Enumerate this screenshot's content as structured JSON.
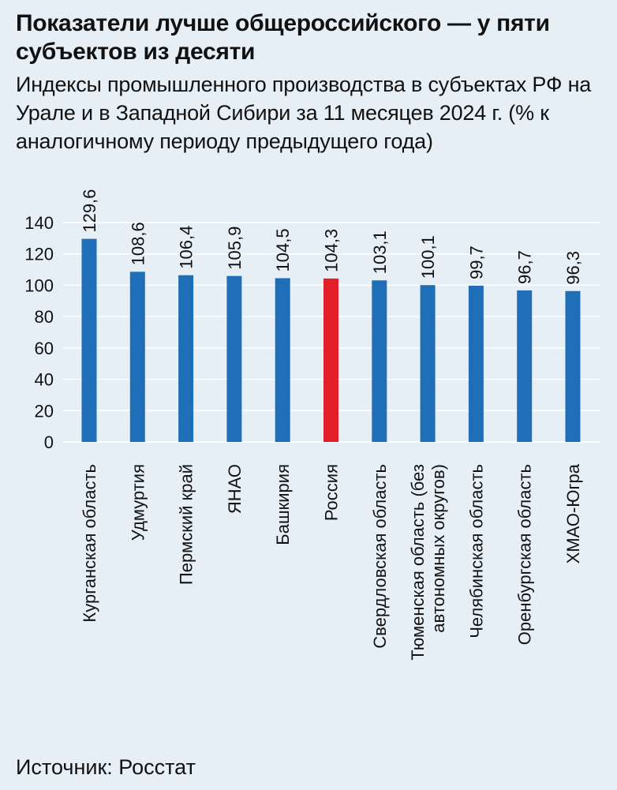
{
  "title": "Показатели лучше общероссийского — у пяти субъектов из десяти",
  "subtitle": "Индексы промышленного производства в субъектах РФ на Урале и в Западной Сибири за 11 месяцев 2024 г. (% к аналогичному периоду предыдущего года)",
  "source": "Источник: Росстат",
  "colors": {
    "bar": "#1e6fb8",
    "highlight": "#e3202a",
    "grid": "#ffffff",
    "background": "#e6eff6"
  },
  "chart_data": {
    "type": "bar",
    "categories": [
      "Курганская область",
      "Удмуртия",
      "Пермский край",
      "ЯНАО",
      "Башкирия",
      "Россия",
      "Свердловская область",
      "Тюменская область (без автономных округов)",
      "Челябинская область",
      "Оренбургская область",
      "ХМАО-Югра"
    ],
    "category_lines": [
      [
        "Курганская область"
      ],
      [
        "Удмуртия"
      ],
      [
        "Пермский край"
      ],
      [
        "ЯНАО"
      ],
      [
        "Башкирия"
      ],
      [
        "Россия"
      ],
      [
        "Свердловская область"
      ],
      [
        "Тюменская область (без",
        "автономных округов)"
      ],
      [
        "Челябинская область"
      ],
      [
        "Оренбургская область"
      ],
      [
        "ХМАО-Югра"
      ]
    ],
    "values": [
      129.6,
      108.6,
      106.4,
      105.9,
      104.5,
      104.3,
      103.1,
      100.1,
      99.7,
      96.7,
      96.3
    ],
    "value_labels": [
      "129,6",
      "108,6",
      "106,4",
      "105,9",
      "104,5",
      "104,3",
      "103,1",
      "100,1",
      "99,7",
      "96,7",
      "96,3"
    ],
    "highlight_category": "Россия",
    "yticks": [
      0,
      20,
      40,
      60,
      80,
      100,
      120,
      140
    ],
    "ylim": [
      0,
      140
    ],
    "grid": true,
    "xlabel": "",
    "ylabel": ""
  }
}
